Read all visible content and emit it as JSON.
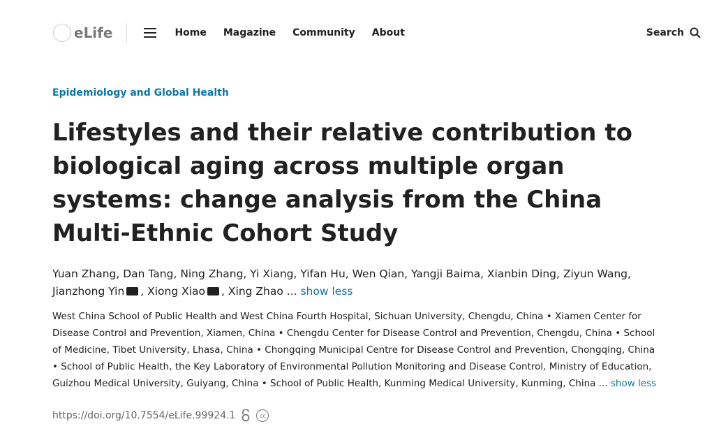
{
  "nav": {
    "logo": "eLife",
    "links": [
      "Home",
      "Magazine",
      "Community",
      "About"
    ],
    "search": "Search"
  },
  "article": {
    "subject": "Epidemiology and Global Health",
    "title": "Lifestyles and their relative contribution to biological aging across multiple organ systems: change analysis from the China Multi-Ethnic Cohort Study",
    "authors_a": "Yuan Zhang, Dan Tang, Ning Zhang, Yi Xiang, Yifan Hu, Wen Qian, Yangji Baima, Xianbin Ding, Ziyun Wang, Jianzhong Yin",
    "authors_b": ", Xiong Xiao",
    "authors_c": ", Xing Zhao ...",
    "authors_toggle": "show less",
    "affiliations": "West China School of Public Health and West China Fourth Hospital, Sichuan University, Chengdu, China • Xiamen Center for Disease Control and Prevention, Xiamen, China • Chengdu Center for Disease Control and Prevention, Chengdu, China • School of Medicine, Tibet University, Lhasa, China • Chongqing Municipal Centre for Disease Control and Prevention, Chongqing, China • School of Public Health, the Key Laboratory of Environmental Pollution Monitoring and Disease Control, Ministry of Education, Guizhou Medical University, Guiyang, China • School of Public Health, Kunming Medical University, Kunming, China ...",
    "affiliations_toggle": "show less",
    "doi": "https://doi.org/10.7554/eLife.99924.1",
    "icons": [
      "open-access-icon",
      "creative-commons-icon"
    ]
  },
  "colors": {
    "link": "#0a76a8",
    "text": "#212121"
  }
}
